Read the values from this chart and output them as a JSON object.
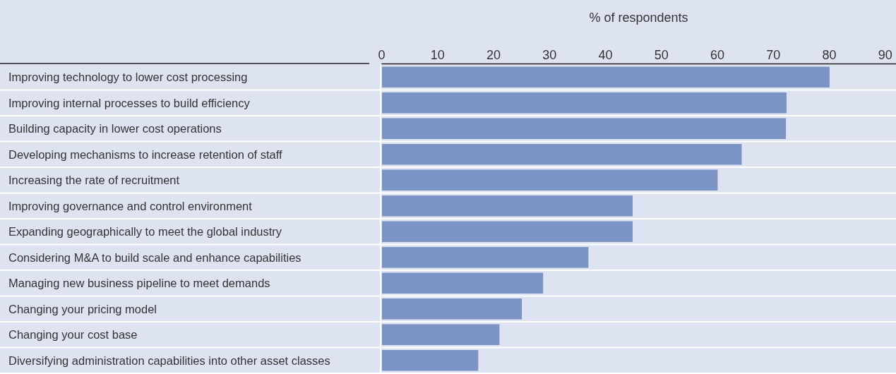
{
  "chart_data": {
    "type": "bar",
    "orientation": "horizontal",
    "xlabel": "% of respondents",
    "categories": [
      "Improving technology to lower cost processing",
      "Improving internal processes to build efficiency",
      "Building capacity in lower cost operations",
      "Developing mechanisms to increase retention of staff",
      "Increasing the rate of recruitment",
      "Improving governance and control environment",
      "Expanding geographically to meet the global industry",
      "Considering M&A to build scale and enhance capabilities",
      "Managing new business pipeline to meet demands",
      "Changing your pricing model",
      "Changing your cost base",
      "Diversifying administration capabilities into other asset classes"
    ],
    "values": [
      80,
      72.3,
      72.2,
      64.3,
      60,
      44.8,
      44.8,
      36.9,
      28.8,
      25,
      21,
      17.2
    ],
    "color": "#7b93c5",
    "xlim": [
      0,
      92
    ],
    "xticks": [
      0,
      10,
      20,
      30,
      40,
      50,
      60,
      70,
      80,
      90
    ]
  }
}
